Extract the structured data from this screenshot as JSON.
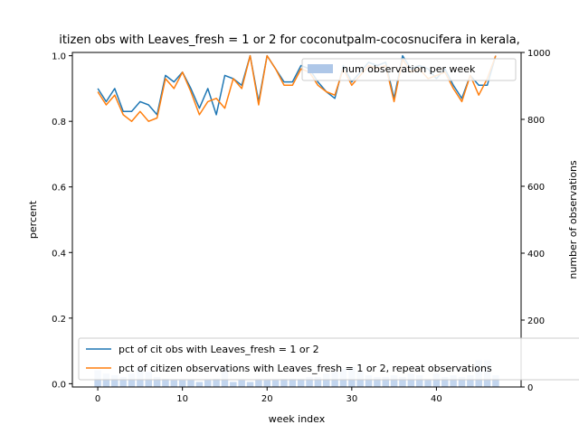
{
  "chart_data": {
    "type": "line",
    "title": "itizen obs with Leaves_fresh = 1 or 2 for coconutpalm-cocosnucifera in kerala,",
    "xlabel": "week index",
    "ylabel_left": "percent",
    "ylabel_right": "number of observations",
    "xlim": [
      -3,
      50
    ],
    "ylim_left": [
      -0.01,
      1.01
    ],
    "ylim_right": [
      0,
      1000
    ],
    "xticks": [
      0,
      10,
      20,
      30,
      40
    ],
    "yticks_left": [
      0.0,
      0.2,
      0.4,
      0.6,
      0.8,
      1.0
    ],
    "yticks_right": [
      0,
      200,
      400,
      600,
      800,
      1000
    ],
    "x": [
      0,
      1,
      2,
      3,
      4,
      5,
      6,
      7,
      8,
      9,
      10,
      11,
      12,
      13,
      14,
      15,
      16,
      17,
      18,
      19,
      20,
      21,
      22,
      23,
      24,
      25,
      26,
      27,
      28,
      29,
      30,
      31,
      32,
      33,
      34,
      35,
      36,
      37,
      38,
      39,
      40,
      41,
      42,
      43,
      44,
      45,
      46,
      47
    ],
    "series": [
      {
        "name": "pct of cit obs with Leaves_fresh = 1 or 2",
        "color": "#1f77b4",
        "values": [
          0.9,
          0.86,
          0.9,
          0.83,
          0.83,
          0.86,
          0.85,
          0.82,
          0.94,
          0.92,
          0.95,
          0.9,
          0.84,
          0.9,
          0.82,
          0.94,
          0.93,
          0.91,
          1.0,
          0.86,
          1.0,
          0.96,
          0.92,
          0.92,
          0.97,
          0.96,
          0.92,
          0.89,
          0.87,
          0.97,
          0.92,
          0.95,
          0.98,
          0.97,
          0.98,
          0.87,
          1.0,
          0.96,
          0.97,
          0.96,
          0.93,
          0.96,
          0.91,
          0.87,
          0.94,
          0.91,
          0.91,
          1.0
        ]
      },
      {
        "name": "pct of citizen observations with Leaves_fresh = 1 or 2, repeat observations",
        "color": "#ff7f0e",
        "values": [
          0.89,
          0.85,
          0.88,
          0.82,
          0.8,
          0.83,
          0.8,
          0.81,
          0.93,
          0.9,
          0.95,
          0.89,
          0.82,
          0.86,
          0.87,
          0.84,
          0.93,
          0.9,
          1.0,
          0.85,
          1.0,
          0.96,
          0.91,
          0.91,
          0.96,
          0.95,
          0.91,
          0.89,
          0.88,
          0.96,
          0.91,
          0.94,
          0.97,
          0.96,
          0.97,
          0.86,
          0.99,
          0.95,
          0.96,
          0.93,
          0.94,
          0.95,
          0.9,
          0.86,
          0.94,
          0.88,
          0.93,
          1.0
        ]
      }
    ],
    "bars": {
      "name": "num observation per week",
      "color": "#aec7e8",
      "values": [
        50,
        40,
        35,
        30,
        40,
        60,
        45,
        30,
        25,
        20,
        20,
        20,
        15,
        20,
        25,
        60,
        15,
        20,
        15,
        20,
        20,
        20,
        25,
        25,
        25,
        30,
        30,
        40,
        45,
        55,
        60,
        45,
        35,
        30,
        30,
        35,
        30,
        40,
        35,
        20,
        40,
        30,
        35,
        30,
        35,
        80,
        80,
        35
      ]
    },
    "legend_upper": {
      "placement": "top-right",
      "entries": [
        "num observation per week"
      ]
    },
    "legend_lower": {
      "placement": "bottom-left",
      "entries": [
        "pct of cit obs with Leaves_fresh = 1 or 2",
        "pct of citizen observations with Leaves_fresh = 1 or 2, repeat observations"
      ]
    }
  }
}
